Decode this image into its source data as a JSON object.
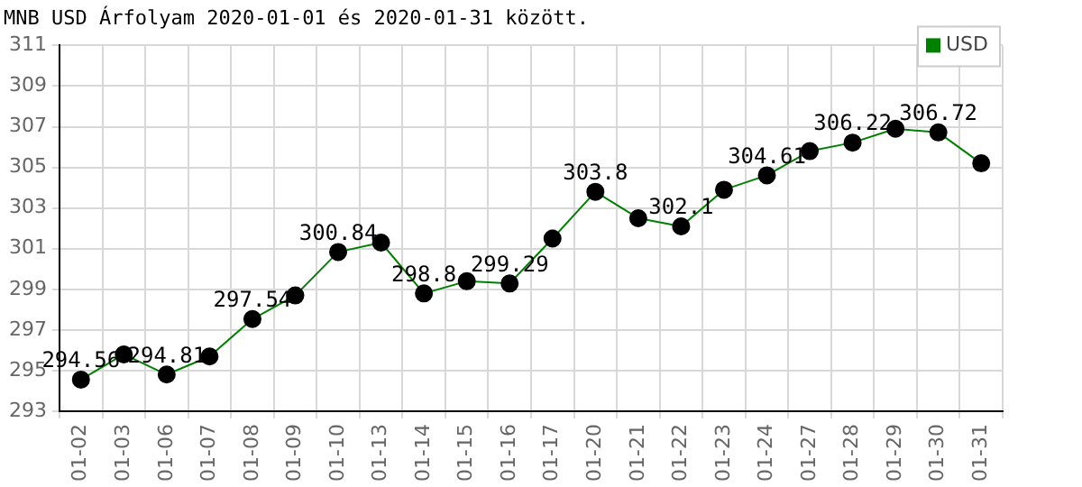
{
  "chart_data": {
    "type": "line",
    "title": "MNB USD Árfolyam 2020-01-01 és 2020-01-31 között.",
    "categories": [
      "01-02",
      "01-03",
      "01-06",
      "01-07",
      "01-08",
      "01-09",
      "01-10",
      "01-13",
      "01-14",
      "01-15",
      "01-16",
      "01-17",
      "01-20",
      "01-21",
      "01-22",
      "01-23",
      "01-24",
      "01-27",
      "01-28",
      "01-29",
      "01-30",
      "01-31"
    ],
    "series": [
      {
        "name": "USD",
        "color": "#008000",
        "values": [
          294.56,
          295.8,
          294.81,
          295.7,
          297.54,
          298.7,
          300.84,
          301.3,
          298.8,
          299.4,
          299.29,
          301.5,
          303.8,
          302.5,
          302.1,
          303.9,
          304.61,
          305.8,
          306.22,
          306.9,
          306.72,
          305.2
        ],
        "value_labels": [
          "294.56",
          null,
          "294.81",
          null,
          "297.54",
          null,
          "300.84",
          null,
          "298.8",
          null,
          "299.29",
          null,
          "303.8",
          null,
          "302.1",
          null,
          "304.61",
          null,
          "306.22",
          null,
          "306.72",
          null
        ]
      }
    ],
    "ylim": [
      293,
      311
    ],
    "yticks": [
      293,
      295,
      297,
      299,
      301,
      303,
      305,
      307,
      309,
      311
    ],
    "grid": true,
    "legend": "top right",
    "marker": "circle",
    "line_style": "solid"
  }
}
